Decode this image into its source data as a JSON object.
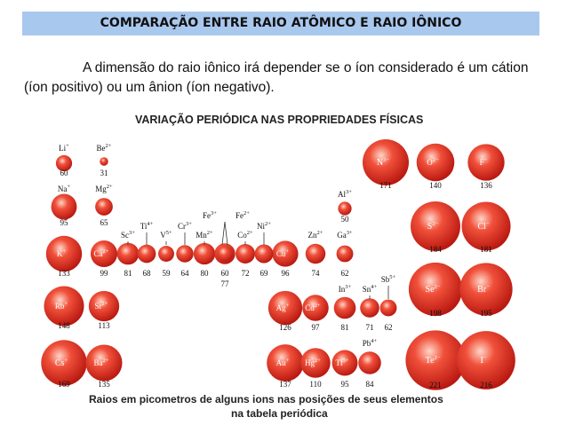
{
  "header": {
    "title": "COMPARAÇÃO ENTRE RAIO ATÔMICO E RAIO IÔNICO"
  },
  "paragraph": "A dimensão do raio iônico irá depender se o íon considerado é um cátion (íon positivo) ou um ânion (íon negativo).",
  "figure": {
    "title": "VARIAÇÃO PERIÓDICA NAS PROPRIEDADES FÍSICAS",
    "caption": [
      "Raios em picometros de alguns ions nas posições de seus elementos",
      "na tabela periódica"
    ],
    "ions": [
      {
        "symbol": "Li",
        "charge": "+",
        "radius": 60
      },
      {
        "symbol": "Be",
        "charge": "2+",
        "radius": 31
      },
      {
        "symbol": "N",
        "charge": "3−",
        "radius": 171
      },
      {
        "symbol": "O",
        "charge": "2−",
        "radius": 140
      },
      {
        "symbol": "F",
        "charge": "−",
        "radius": 136
      },
      {
        "symbol": "Na",
        "charge": "+",
        "radius": 95
      },
      {
        "symbol": "Mg",
        "charge": "2+",
        "radius": 65
      },
      {
        "symbol": "Al",
        "charge": "3+",
        "radius": 50
      },
      {
        "symbol": "S",
        "charge": "2−",
        "radius": 184
      },
      {
        "symbol": "Cl",
        "charge": "−",
        "radius": 181
      },
      {
        "symbol": "K",
        "charge": "+",
        "radius": 133
      },
      {
        "symbol": "Ca",
        "charge": "2+",
        "radius": 99
      },
      {
        "symbol": "Sc",
        "charge": "3+",
        "radius": 81
      },
      {
        "symbol": "Ti",
        "charge": "4+",
        "radius": 68
      },
      {
        "symbol": "V",
        "charge": "5+",
        "radius": 59
      },
      {
        "symbol": "Cr",
        "charge": "3+",
        "radius": 64
      },
      {
        "symbol": "Mn",
        "charge": "2+",
        "radius": 80
      },
      {
        "symbol": "Fe",
        "charge": "3+",
        "radius": 60
      },
      {
        "symbol": "Fe",
        "charge": "2+",
        "radius": 77
      },
      {
        "symbol": "Co",
        "charge": "2+",
        "radius": 72
      },
      {
        "symbol": "Ni",
        "charge": "2+",
        "radius": 69
      },
      {
        "symbol": "Cu",
        "charge": "+",
        "radius": 96
      },
      {
        "symbol": "Zn",
        "charge": "2+",
        "radius": 74
      },
      {
        "symbol": "Ga",
        "charge": "3+",
        "radius": 62
      },
      {
        "symbol": "Se",
        "charge": "2−",
        "radius": 198
      },
      {
        "symbol": "Br",
        "charge": "−",
        "radius": 195
      },
      {
        "symbol": "Rb",
        "charge": "+",
        "radius": 148
      },
      {
        "symbol": "Sr",
        "charge": "2+",
        "radius": 113
      },
      {
        "symbol": "Ag",
        "charge": "+",
        "radius": 126
      },
      {
        "symbol": "Cd",
        "charge": "2+",
        "radius": 97
      },
      {
        "symbol": "In",
        "charge": "3+",
        "radius": 81
      },
      {
        "symbol": "Sn",
        "charge": "4+",
        "radius": 71
      },
      {
        "symbol": "Sb",
        "charge": "5+",
        "radius": 62
      },
      {
        "symbol": "Te",
        "charge": "2−",
        "radius": 221
      },
      {
        "symbol": "I",
        "charge": "−",
        "radius": 216
      },
      {
        "symbol": "Cs",
        "charge": "+",
        "radius": 169
      },
      {
        "symbol": "Ba",
        "charge": "2+",
        "radius": 135
      },
      {
        "symbol": "Au",
        "charge": "+",
        "radius": 137
      },
      {
        "symbol": "Hg",
        "charge": "2+",
        "radius": 110
      },
      {
        "symbol": "Tl",
        "charge": "3+",
        "radius": 95
      },
      {
        "symbol": "Pb",
        "charge": "4+",
        "radius": 84
      }
    ]
  }
}
